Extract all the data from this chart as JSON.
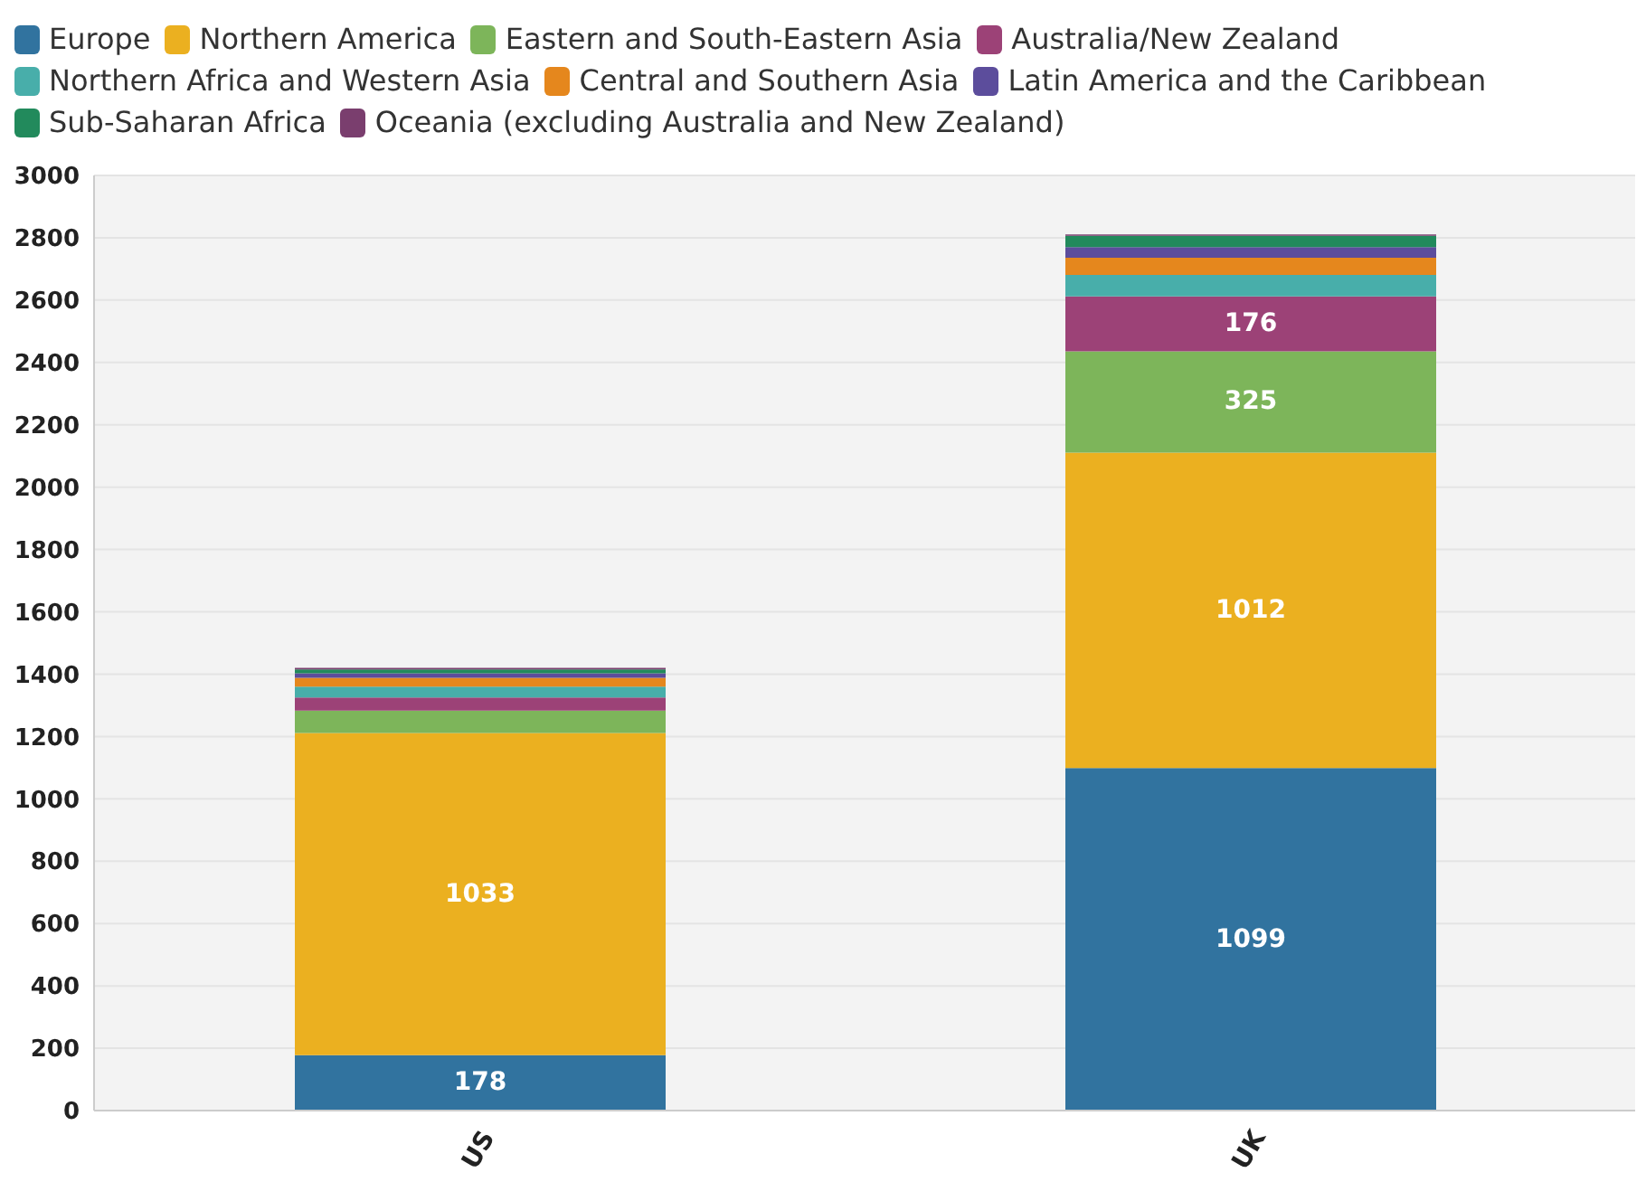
{
  "chart_data": {
    "type": "bar",
    "stacked": true,
    "categories": [
      "US",
      "UK"
    ],
    "series": [
      {
        "name": "Europe",
        "color": "#31739f",
        "values": [
          178,
          1099
        ],
        "value_labels": [
          "178",
          "1099"
        ]
      },
      {
        "name": "Northern America",
        "color": "#ebb020",
        "values": [
          1033,
          1012
        ],
        "value_labels": [
          "1033",
          "1012"
        ]
      },
      {
        "name": "Eastern and South-Eastern Asia",
        "color": "#7db55a",
        "values": [
          72,
          325
        ],
        "value_labels": [
          null,
          "325"
        ]
      },
      {
        "name": "Australia/New Zealand",
        "color": "#9c4277",
        "values": [
          42,
          176
        ],
        "value_labels": [
          null,
          "176"
        ]
      },
      {
        "name": "Northern Africa and Western Asia",
        "color": "#48aeaa",
        "values": [
          35,
          69
        ]
      },
      {
        "name": "Central and Southern Asia",
        "color": "#e5871d",
        "values": [
          28,
          55
        ]
      },
      {
        "name": "Latin America and the Caribbean",
        "color": "#5c4d9c",
        "values": [
          15,
          34
        ]
      },
      {
        "name": "Sub-Saharan Africa",
        "color": "#228a5c",
        "values": [
          12,
          36
        ]
      },
      {
        "name": "Oceania (excluding Australia and New Zealand)",
        "color": "#7a3e6e",
        "values": [
          5,
          5
        ]
      }
    ],
    "ylim": [
      0,
      3000
    ],
    "yticks": [
      0,
      200,
      400,
      600,
      800,
      1000,
      1200,
      1400,
      1600,
      1800,
      2000,
      2200,
      2400,
      2600,
      2800,
      3000
    ],
    "grid": "y",
    "legend": "top"
  }
}
